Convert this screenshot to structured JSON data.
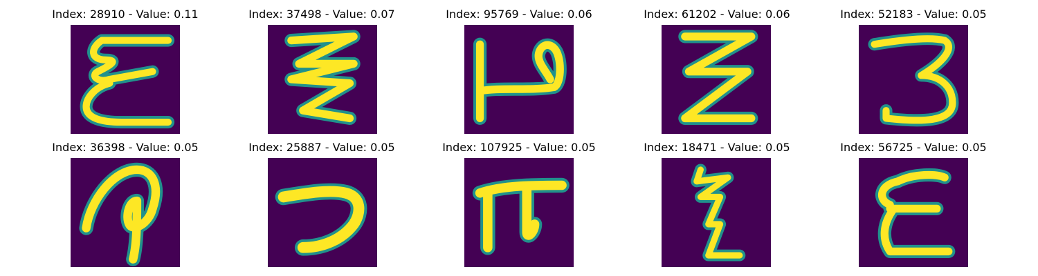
{
  "panels": [
    {
      "title": "Index: 28910 - Value: 0.11"
    },
    {
      "title": "Index: 37498 - Value: 0.07"
    },
    {
      "title": "Index: 95769 - Value: 0.06"
    },
    {
      "title": "Index: 61202 - Value: 0.06"
    },
    {
      "title": "Index: 52183 - Value: 0.05"
    },
    {
      "title": "Index: 36398 - Value: 0.05"
    },
    {
      "title": "Index: 25887 - Value: 0.05"
    },
    {
      "title": "Index: 107925 - Value: 0.05"
    },
    {
      "title": "Index: 18471 - Value: 0.05"
    },
    {
      "title": "Index: 56725 - Value: 0.05"
    }
  ],
  "colors": {
    "background": "#440154",
    "stroke": "#fde725",
    "edge": "#21918c"
  }
}
